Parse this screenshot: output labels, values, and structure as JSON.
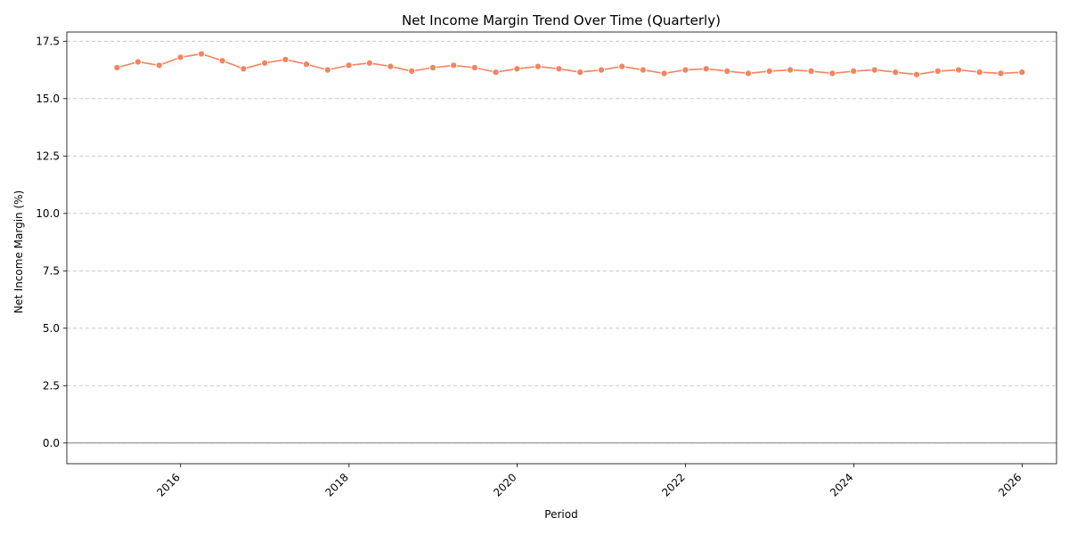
{
  "chart_data": {
    "type": "line",
    "title": "Net Income Margin Trend Over Time (Quarterly)",
    "xlabel": "Period",
    "ylabel": "Net Income Margin (%)",
    "ylim": [
      -0.9,
      17.9
    ],
    "yticks": [
      0.0,
      2.5,
      5.0,
      7.5,
      10.0,
      12.5,
      15.0,
      17.5
    ],
    "ytick_labels": [
      "0.0",
      "2.5",
      "5.0",
      "7.5",
      "10.0",
      "12.5",
      "15.0",
      "17.5"
    ],
    "xlim": [
      "2014-08-25",
      "2026-05-30"
    ],
    "xticks": [
      "2016-01-01",
      "2018-01-01",
      "2020-01-01",
      "2022-01-01",
      "2024-01-01",
      "2026-01-01"
    ],
    "xtick_labels": [
      "2016",
      "2018",
      "2020",
      "2022",
      "2024",
      "2026"
    ],
    "grid": "y-dashed",
    "reference_line": 0,
    "line_color": "#f4845f",
    "marker_color": "#f4845f",
    "series": [
      {
        "x": [
          "2015-03-31",
          "2015-06-30",
          "2015-09-30",
          "2015-12-31",
          "2016-03-31",
          "2016-06-30",
          "2016-09-30",
          "2016-12-31",
          "2017-03-31",
          "2017-06-30",
          "2017-09-30",
          "2017-12-31",
          "2018-03-31",
          "2018-06-30",
          "2018-09-30",
          "2018-12-31",
          "2019-03-31",
          "2019-06-30",
          "2019-09-30",
          "2019-12-31",
          "2020-03-31",
          "2020-06-30",
          "2020-09-30",
          "2020-12-31",
          "2021-03-31",
          "2021-06-30",
          "2021-09-30",
          "2021-12-31",
          "2022-03-31",
          "2022-06-30",
          "2022-09-30",
          "2022-12-31",
          "2023-03-31",
          "2023-06-30",
          "2023-09-30",
          "2023-12-31",
          "2024-03-31",
          "2024-06-30",
          "2024-09-30",
          "2024-12-31",
          "2025-03-31",
          "2025-06-30",
          "2025-09-30",
          "2025-12-31"
        ],
        "values": [
          16.35,
          16.6,
          16.45,
          16.8,
          16.95,
          16.65,
          16.3,
          16.55,
          16.7,
          16.5,
          16.25,
          16.45,
          16.55,
          16.4,
          16.2,
          16.35,
          16.45,
          16.35,
          16.15,
          16.3,
          16.4,
          16.3,
          16.15,
          16.25,
          16.4,
          16.25,
          16.1,
          16.25,
          16.3,
          16.2,
          16.1,
          16.2,
          16.25,
          16.2,
          16.1,
          16.2,
          16.25,
          16.15,
          16.05,
          16.2,
          16.25,
          16.15,
          16.1,
          16.15
        ]
      }
    ]
  }
}
